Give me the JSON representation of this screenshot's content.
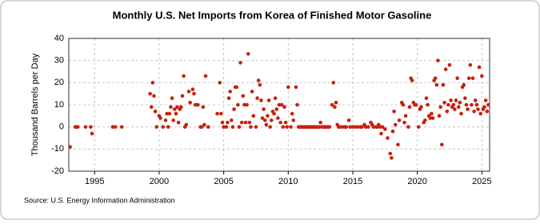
{
  "chart_data": {
    "type": "scatter",
    "title": "Monthly U.S. Net Imports from Korea of Finished Motor Gasoline",
    "y_label": "Thousand Barrels per Day",
    "source": "Source: U.S. Energy Information Administration",
    "color": "#c8200e",
    "grid": true,
    "xlim": [
      1993,
      2025.6
    ],
    "xticks": [
      1995,
      2000,
      2005,
      2010,
      2015,
      2020,
      2025
    ],
    "ylim": [
      -20,
      40
    ],
    "yticks": [
      -20,
      -10,
      0,
      10,
      20,
      30,
      40
    ],
    "x": [
      1993.1,
      1993.5,
      1993.6,
      1993.7,
      1994.3,
      1994.7,
      1994.8,
      1996.4,
      1996.6,
      1997.1,
      1999.3,
      1999.4,
      1999.5,
      1999.6,
      1999.7,
      1999.8,
      2000.0,
      2000.1,
      2000.3,
      2000.5,
      2000.6,
      2000.7,
      2000.8,
      2000.9,
      2001.0,
      2001.1,
      2001.2,
      2001.3,
      2001.4,
      2001.5,
      2001.6,
      2001.7,
      2001.8,
      2001.9,
      2002.0,
      2002.1,
      2002.3,
      2002.4,
      2002.6,
      2002.7,
      2002.8,
      2002.9,
      2003.0,
      2003.2,
      2003.3,
      2003.4,
      2003.5,
      2003.6,
      2003.8,
      2004.5,
      2004.7,
      2004.8,
      2004.9,
      2005.0,
      2005.2,
      2005.3,
      2005.4,
      2005.5,
      2005.6,
      2005.7,
      2005.8,
      2005.9,
      2006.0,
      2006.1,
      2006.2,
      2006.3,
      2006.4,
      2006.5,
      2006.6,
      2006.7,
      2006.8,
      2006.9,
      2007.0,
      2007.1,
      2007.2,
      2007.3,
      2007.5,
      2007.6,
      2007.7,
      2007.8,
      2007.9,
      2008.0,
      2008.1,
      2008.2,
      2008.3,
      2008.4,
      2008.5,
      2008.6,
      2008.7,
      2008.8,
      2008.9,
      2009.0,
      2009.1,
      2009.2,
      2009.3,
      2009.4,
      2009.5,
      2009.6,
      2009.7,
      2009.8,
      2009.9,
      2010.0,
      2010.2,
      2010.3,
      2010.4,
      2010.6,
      2010.7,
      2010.8,
      2010.9,
      2011.0,
      2011.1,
      2011.2,
      2011.3,
      2011.4,
      2011.5,
      2011.6,
      2011.7,
      2011.8,
      2011.9,
      2012.0,
      2012.1,
      2012.2,
      2012.3,
      2012.4,
      2012.5,
      2012.6,
      2012.7,
      2012.8,
      2012.9,
      2013.0,
      2013.1,
      2013.2,
      2013.4,
      2013.5,
      2013.6,
      2013.7,
      2013.8,
      2013.9,
      2014.0,
      2014.2,
      2014.4,
      2014.5,
      2014.7,
      2014.8,
      2015.0,
      2015.2,
      2015.4,
      2015.6,
      2015.7,
      2015.9,
      2016.0,
      2016.2,
      2016.4,
      2016.5,
      2016.6,
      2016.8,
      2016.9,
      2017.0,
      2017.1,
      2017.2,
      2017.3,
      2017.5,
      2017.7,
      2017.9,
      2018.0,
      2018.1,
      2018.2,
      2018.3,
      2018.5,
      2018.6,
      2018.8,
      2018.9,
      2019.0,
      2019.1,
      2019.3,
      2019.4,
      2019.5,
      2019.6,
      2019.7,
      2019.8,
      2019.9,
      2020.1,
      2020.2,
      2020.3,
      2020.5,
      2020.6,
      2020.7,
      2020.8,
      2020.9,
      2021.0,
      2021.1,
      2021.2,
      2021.3,
      2021.4,
      2021.5,
      2021.6,
      2021.7,
      2021.8,
      2021.9,
      2022.0,
      2022.1,
      2022.2,
      2022.3,
      2022.4,
      2022.5,
      2022.6,
      2022.7,
      2022.8,
      2022.9,
      2023.0,
      2023.1,
      2023.2,
      2023.3,
      2023.4,
      2023.5,
      2023.6,
      2023.7,
      2023.8,
      2023.9,
      2024.0,
      2024.1,
      2024.2,
      2024.3,
      2024.4,
      2024.5,
      2024.6,
      2024.7,
      2024.8,
      2024.9,
      2025.0,
      2025.1,
      2025.2,
      2025.3,
      2025.4,
      2025.5
    ],
    "values": [
      -9,
      0,
      0,
      0,
      0,
      0,
      -3,
      0,
      0,
      0,
      15,
      9,
      20,
      14,
      7,
      0,
      5,
      4,
      0,
      3,
      6,
      0,
      6,
      9,
      13,
      3,
      8,
      6,
      9,
      2,
      8,
      9,
      14,
      23,
      0,
      1,
      16,
      11,
      17,
      15,
      10,
      10,
      10,
      0,
      0,
      9,
      1,
      23,
      0,
      6,
      20,
      6,
      2,
      0,
      0,
      2,
      13,
      16,
      3,
      0,
      8,
      18,
      18,
      10,
      0,
      29,
      2,
      14,
      10,
      2,
      10,
      33,
      2,
      0,
      16,
      5,
      0,
      13,
      21,
      19,
      12,
      4,
      8,
      3,
      1,
      5,
      12,
      0,
      3,
      7,
      6,
      13,
      8,
      4,
      10,
      2,
      10,
      0,
      9,
      2,
      0,
      18,
      0,
      6,
      3,
      18,
      10,
      0,
      0,
      0,
      0,
      0,
      0,
      0,
      0,
      0,
      0,
      0,
      0,
      0,
      0,
      0,
      0,
      0,
      2,
      0,
      0,
      0,
      0,
      0,
      0,
      0,
      10,
      20,
      9,
      11,
      1,
      0,
      0,
      0,
      0,
      0,
      3,
      0,
      0,
      0,
      0,
      0,
      0,
      1,
      0,
      0,
      2,
      1,
      0,
      0,
      0,
      1,
      0,
      -3,
      0,
      -1,
      -5,
      -12,
      -14,
      -2,
      7,
      1,
      -8,
      3,
      11,
      10,
      2,
      5,
      0,
      9,
      22,
      21,
      11,
      10,
      10,
      0,
      8,
      9,
      2,
      3,
      13,
      10,
      5,
      4,
      6,
      4,
      21,
      22,
      19,
      30,
      5,
      9,
      -8,
      19,
      11,
      26,
      7,
      10,
      28,
      12,
      9,
      10,
      8,
      12,
      22,
      9,
      11,
      6,
      18,
      19,
      13,
      10,
      8,
      22,
      28,
      10,
      22,
      7,
      12,
      10,
      8,
      27,
      6,
      23,
      8,
      9,
      12,
      7,
      10
    ]
  }
}
